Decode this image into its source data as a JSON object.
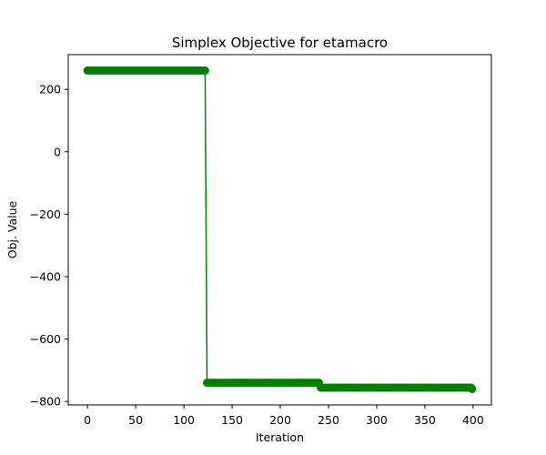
{
  "chart_data": {
    "type": "line",
    "title": "Simplex Objective for etamacro",
    "xlabel": "Iteration",
    "ylabel": "Obj. Value",
    "xlim": [
      -19.95,
      418.95
    ],
    "ylim": [
      -811.2,
      311.3
    ],
    "xticks": [
      0,
      50,
      100,
      150,
      200,
      250,
      300,
      350,
      400
    ],
    "yticks": [
      -800,
      -600,
      -400,
      -200,
      0,
      200
    ],
    "ytick_labels": [
      "−800",
      "−600",
      "−400",
      "−200",
      "0",
      "200"
    ],
    "grid": false,
    "legend": "none",
    "series": [
      {
        "color": "#008000",
        "marker": "circle",
        "segments": [
          {
            "x_start": 0,
            "x_end": 122,
            "step": 2,
            "y": 260.2
          },
          {
            "x_start": 124,
            "x_end": 240,
            "step": 2,
            "y": -740.0
          },
          {
            "x_start": 242,
            "x_end": 398,
            "step": 2,
            "y": -755.8
          }
        ],
        "final_point": {
          "x": 399,
          "y": -760.3
        }
      }
    ]
  }
}
